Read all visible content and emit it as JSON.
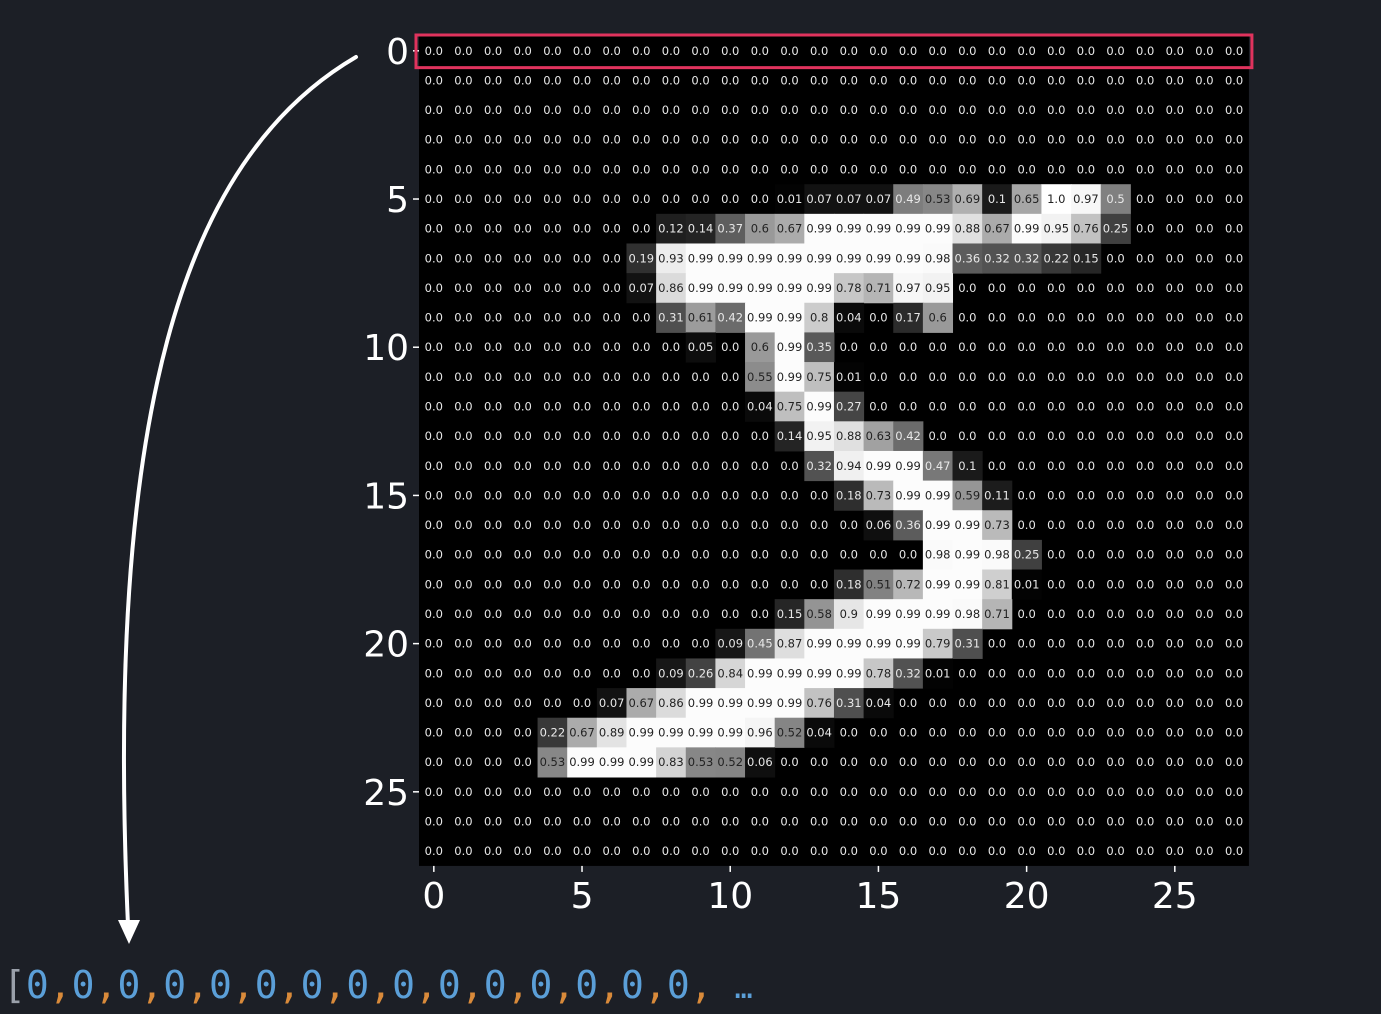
{
  "chart_data": {
    "type": "heatmap",
    "x_ticks": [
      "0",
      "5",
      "10",
      "15",
      "20",
      "25"
    ],
    "y_ticks": [
      "0",
      "5",
      "10",
      "15",
      "20",
      "25"
    ],
    "colormap": "gray",
    "highlight_row": 0,
    "highlight_color": "#e0335d",
    "values": [
      [
        "0.0",
        "0.0",
        "0.0",
        "0.0",
        "0.0",
        "0.0",
        "0.0",
        "0.0",
        "0.0",
        "0.0",
        "0.0",
        "0.0",
        "0.0",
        "0.0",
        "0.0",
        "0.0",
        "0.0",
        "0.0",
        "0.0",
        "0.0",
        "0.0",
        "0.0",
        "0.0",
        "0.0",
        "0.0",
        "0.0",
        "0.0",
        "0.0"
      ],
      [
        "0.0",
        "0.0",
        "0.0",
        "0.0",
        "0.0",
        "0.0",
        "0.0",
        "0.0",
        "0.0",
        "0.0",
        "0.0",
        "0.0",
        "0.0",
        "0.0",
        "0.0",
        "0.0",
        "0.0",
        "0.0",
        "0.0",
        "0.0",
        "0.0",
        "0.0",
        "0.0",
        "0.0",
        "0.0",
        "0.0",
        "0.0",
        "0.0"
      ],
      [
        "0.0",
        "0.0",
        "0.0",
        "0.0",
        "0.0",
        "0.0",
        "0.0",
        "0.0",
        "0.0",
        "0.0",
        "0.0",
        "0.0",
        "0.0",
        "0.0",
        "0.0",
        "0.0",
        "0.0",
        "0.0",
        "0.0",
        "0.0",
        "0.0",
        "0.0",
        "0.0",
        "0.0",
        "0.0",
        "0.0",
        "0.0",
        "0.0"
      ],
      [
        "0.0",
        "0.0",
        "0.0",
        "0.0",
        "0.0",
        "0.0",
        "0.0",
        "0.0",
        "0.0",
        "0.0",
        "0.0",
        "0.0",
        "0.0",
        "0.0",
        "0.0",
        "0.0",
        "0.0",
        "0.0",
        "0.0",
        "0.0",
        "0.0",
        "0.0",
        "0.0",
        "0.0",
        "0.0",
        "0.0",
        "0.0",
        "0.0"
      ],
      [
        "0.0",
        "0.0",
        "0.0",
        "0.0",
        "0.0",
        "0.0",
        "0.0",
        "0.0",
        "0.0",
        "0.0",
        "0.0",
        "0.0",
        "0.0",
        "0.0",
        "0.0",
        "0.0",
        "0.0",
        "0.0",
        "0.0",
        "0.0",
        "0.0",
        "0.0",
        "0.0",
        "0.0",
        "0.0",
        "0.0",
        "0.0",
        "0.0"
      ],
      [
        "0.0",
        "0.0",
        "0.0",
        "0.0",
        "0.0",
        "0.0",
        "0.0",
        "0.0",
        "0.0",
        "0.0",
        "0.0",
        "0.0",
        "0.01",
        "0.07",
        "0.07",
        "0.07",
        "0.49",
        "0.53",
        "0.69",
        "0.1",
        "0.65",
        "1.0",
        "0.97",
        "0.5",
        "0.0",
        "0.0",
        "0.0",
        "0.0"
      ],
      [
        "0.0",
        "0.0",
        "0.0",
        "0.0",
        "0.0",
        "0.0",
        "0.0",
        "0.0",
        "0.12",
        "0.14",
        "0.37",
        "0.6",
        "0.67",
        "0.99",
        "0.99",
        "0.99",
        "0.99",
        "0.99",
        "0.88",
        "0.67",
        "0.99",
        "0.95",
        "0.76",
        "0.25",
        "0.0",
        "0.0",
        "0.0",
        "0.0"
      ],
      [
        "0.0",
        "0.0",
        "0.0",
        "0.0",
        "0.0",
        "0.0",
        "0.0",
        "0.19",
        "0.93",
        "0.99",
        "0.99",
        "0.99",
        "0.99",
        "0.99",
        "0.99",
        "0.99",
        "0.99",
        "0.98",
        "0.36",
        "0.32",
        "0.32",
        "0.22",
        "0.15",
        "0.0",
        "0.0",
        "0.0",
        "0.0",
        "0.0"
      ],
      [
        "0.0",
        "0.0",
        "0.0",
        "0.0",
        "0.0",
        "0.0",
        "0.0",
        "0.07",
        "0.86",
        "0.99",
        "0.99",
        "0.99",
        "0.99",
        "0.99",
        "0.78",
        "0.71",
        "0.97",
        "0.95",
        "0.0",
        "0.0",
        "0.0",
        "0.0",
        "0.0",
        "0.0",
        "0.0",
        "0.0",
        "0.0",
        "0.0"
      ],
      [
        "0.0",
        "0.0",
        "0.0",
        "0.0",
        "0.0",
        "0.0",
        "0.0",
        "0.0",
        "0.31",
        "0.61",
        "0.42",
        "0.99",
        "0.99",
        "0.8",
        "0.04",
        "0.0",
        "0.17",
        "0.6",
        "0.0",
        "0.0",
        "0.0",
        "0.0",
        "0.0",
        "0.0",
        "0.0",
        "0.0",
        "0.0",
        "0.0"
      ],
      [
        "0.0",
        "0.0",
        "0.0",
        "0.0",
        "0.0",
        "0.0",
        "0.0",
        "0.0",
        "0.0",
        "0.05",
        "0.0",
        "0.6",
        "0.99",
        "0.35",
        "0.0",
        "0.0",
        "0.0",
        "0.0",
        "0.0",
        "0.0",
        "0.0",
        "0.0",
        "0.0",
        "0.0",
        "0.0",
        "0.0",
        "0.0",
        "0.0"
      ],
      [
        "0.0",
        "0.0",
        "0.0",
        "0.0",
        "0.0",
        "0.0",
        "0.0",
        "0.0",
        "0.0",
        "0.0",
        "0.0",
        "0.55",
        "0.99",
        "0.75",
        "0.01",
        "0.0",
        "0.0",
        "0.0",
        "0.0",
        "0.0",
        "0.0",
        "0.0",
        "0.0",
        "0.0",
        "0.0",
        "0.0",
        "0.0",
        "0.0"
      ],
      [
        "0.0",
        "0.0",
        "0.0",
        "0.0",
        "0.0",
        "0.0",
        "0.0",
        "0.0",
        "0.0",
        "0.0",
        "0.0",
        "0.04",
        "0.75",
        "0.99",
        "0.27",
        "0.0",
        "0.0",
        "0.0",
        "0.0",
        "0.0",
        "0.0",
        "0.0",
        "0.0",
        "0.0",
        "0.0",
        "0.0",
        "0.0",
        "0.0"
      ],
      [
        "0.0",
        "0.0",
        "0.0",
        "0.0",
        "0.0",
        "0.0",
        "0.0",
        "0.0",
        "0.0",
        "0.0",
        "0.0",
        "0.0",
        "0.14",
        "0.95",
        "0.88",
        "0.63",
        "0.42",
        "0.0",
        "0.0",
        "0.0",
        "0.0",
        "0.0",
        "0.0",
        "0.0",
        "0.0",
        "0.0",
        "0.0",
        "0.0"
      ],
      [
        "0.0",
        "0.0",
        "0.0",
        "0.0",
        "0.0",
        "0.0",
        "0.0",
        "0.0",
        "0.0",
        "0.0",
        "0.0",
        "0.0",
        "0.0",
        "0.32",
        "0.94",
        "0.99",
        "0.99",
        "0.47",
        "0.1",
        "0.0",
        "0.0",
        "0.0",
        "0.0",
        "0.0",
        "0.0",
        "0.0",
        "0.0",
        "0.0"
      ],
      [
        "0.0",
        "0.0",
        "0.0",
        "0.0",
        "0.0",
        "0.0",
        "0.0",
        "0.0",
        "0.0",
        "0.0",
        "0.0",
        "0.0",
        "0.0",
        "0.0",
        "0.18",
        "0.73",
        "0.99",
        "0.99",
        "0.59",
        "0.11",
        "0.0",
        "0.0",
        "0.0",
        "0.0",
        "0.0",
        "0.0",
        "0.0",
        "0.0"
      ],
      [
        "0.0",
        "0.0",
        "0.0",
        "0.0",
        "0.0",
        "0.0",
        "0.0",
        "0.0",
        "0.0",
        "0.0",
        "0.0",
        "0.0",
        "0.0",
        "0.0",
        "0.0",
        "0.06",
        "0.36",
        "0.99",
        "0.99",
        "0.73",
        "0.0",
        "0.0",
        "0.0",
        "0.0",
        "0.0",
        "0.0",
        "0.0",
        "0.0"
      ],
      [
        "0.0",
        "0.0",
        "0.0",
        "0.0",
        "0.0",
        "0.0",
        "0.0",
        "0.0",
        "0.0",
        "0.0",
        "0.0",
        "0.0",
        "0.0",
        "0.0",
        "0.0",
        "0.0",
        "0.0",
        "0.98",
        "0.99",
        "0.98",
        "0.25",
        "0.0",
        "0.0",
        "0.0",
        "0.0",
        "0.0",
        "0.0",
        "0.0"
      ],
      [
        "0.0",
        "0.0",
        "0.0",
        "0.0",
        "0.0",
        "0.0",
        "0.0",
        "0.0",
        "0.0",
        "0.0",
        "0.0",
        "0.0",
        "0.0",
        "0.0",
        "0.18",
        "0.51",
        "0.72",
        "0.99",
        "0.99",
        "0.81",
        "0.01",
        "0.0",
        "0.0",
        "0.0",
        "0.0",
        "0.0",
        "0.0",
        "0.0"
      ],
      [
        "0.0",
        "0.0",
        "0.0",
        "0.0",
        "0.0",
        "0.0",
        "0.0",
        "0.0",
        "0.0",
        "0.0",
        "0.0",
        "0.0",
        "0.15",
        "0.58",
        "0.9",
        "0.99",
        "0.99",
        "0.99",
        "0.98",
        "0.71",
        "0.0",
        "0.0",
        "0.0",
        "0.0",
        "0.0",
        "0.0",
        "0.0",
        "0.0"
      ],
      [
        "0.0",
        "0.0",
        "0.0",
        "0.0",
        "0.0",
        "0.0",
        "0.0",
        "0.0",
        "0.0",
        "0.0",
        "0.09",
        "0.45",
        "0.87",
        "0.99",
        "0.99",
        "0.99",
        "0.99",
        "0.79",
        "0.31",
        "0.0",
        "0.0",
        "0.0",
        "0.0",
        "0.0",
        "0.0",
        "0.0",
        "0.0",
        "0.0"
      ],
      [
        "0.0",
        "0.0",
        "0.0",
        "0.0",
        "0.0",
        "0.0",
        "0.0",
        "0.0",
        "0.09",
        "0.26",
        "0.84",
        "0.99",
        "0.99",
        "0.99",
        "0.99",
        "0.78",
        "0.32",
        "0.01",
        "0.0",
        "0.0",
        "0.0",
        "0.0",
        "0.0",
        "0.0",
        "0.0",
        "0.0",
        "0.0",
        "0.0"
      ],
      [
        "0.0",
        "0.0",
        "0.0",
        "0.0",
        "0.0",
        "0.0",
        "0.07",
        "0.67",
        "0.86",
        "0.99",
        "0.99",
        "0.99",
        "0.99",
        "0.76",
        "0.31",
        "0.04",
        "0.0",
        "0.0",
        "0.0",
        "0.0",
        "0.0",
        "0.0",
        "0.0",
        "0.0",
        "0.0",
        "0.0",
        "0.0",
        "0.0"
      ],
      [
        "0.0",
        "0.0",
        "0.0",
        "0.0",
        "0.22",
        "0.67",
        "0.89",
        "0.99",
        "0.99",
        "0.99",
        "0.99",
        "0.96",
        "0.52",
        "0.04",
        "0.0",
        "0.0",
        "0.0",
        "0.0",
        "0.0",
        "0.0",
        "0.0",
        "0.0",
        "0.0",
        "0.0",
        "0.0",
        "0.0",
        "0.0",
        "0.0"
      ],
      [
        "0.0",
        "0.0",
        "0.0",
        "0.0",
        "0.53",
        "0.99",
        "0.99",
        "0.99",
        "0.83",
        "0.53",
        "0.52",
        "0.06",
        "0.0",
        "0.0",
        "0.0",
        "0.0",
        "0.0",
        "0.0",
        "0.0",
        "0.0",
        "0.0",
        "0.0",
        "0.0",
        "0.0",
        "0.0",
        "0.0",
        "0.0",
        "0.0"
      ],
      [
        "0.0",
        "0.0",
        "0.0",
        "0.0",
        "0.0",
        "0.0",
        "0.0",
        "0.0",
        "0.0",
        "0.0",
        "0.0",
        "0.0",
        "0.0",
        "0.0",
        "0.0",
        "0.0",
        "0.0",
        "0.0",
        "0.0",
        "0.0",
        "0.0",
        "0.0",
        "0.0",
        "0.0",
        "0.0",
        "0.0",
        "0.0",
        "0.0"
      ],
      [
        "0.0",
        "0.0",
        "0.0",
        "0.0",
        "0.0",
        "0.0",
        "0.0",
        "0.0",
        "0.0",
        "0.0",
        "0.0",
        "0.0",
        "0.0",
        "0.0",
        "0.0",
        "0.0",
        "0.0",
        "0.0",
        "0.0",
        "0.0",
        "0.0",
        "0.0",
        "0.0",
        "0.0",
        "0.0",
        "0.0",
        "0.0",
        "0.0"
      ],
      [
        "0.0",
        "0.0",
        "0.0",
        "0.0",
        "0.0",
        "0.0",
        "0.0",
        "0.0",
        "0.0",
        "0.0",
        "0.0",
        "0.0",
        "0.0",
        "0.0",
        "0.0",
        "0.0",
        "0.0",
        "0.0",
        "0.0",
        "0.0",
        "0.0",
        "0.0",
        "0.0",
        "0.0",
        "0.0",
        "0.0",
        "0.0",
        "0.0"
      ]
    ]
  },
  "flattened": {
    "open_bracket": "[",
    "zero": "0",
    "separator": ",",
    "visible_count": 15,
    "ellipsis": "…"
  },
  "colors": {
    "background": "#1c1f26",
    "text": "#ffffff",
    "arrow": "#ffffff",
    "number": "#5b9fd8",
    "comma": "#d98a3a"
  }
}
